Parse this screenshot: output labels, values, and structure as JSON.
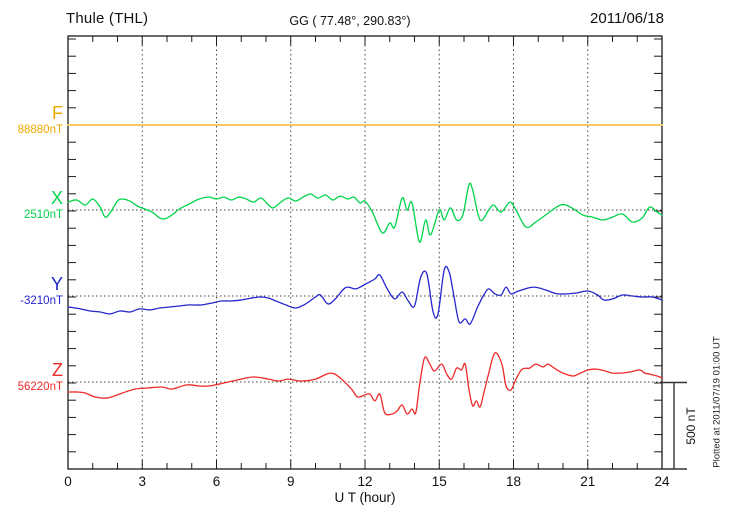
{
  "header": {
    "station": "Thule (THL)",
    "coords": "GG ( 77.48°, 290.83°)",
    "date": "2011/06/18"
  },
  "x_axis": {
    "label": "U T (hour)",
    "tick_labels": [
      "0",
      "3",
      "6",
      "9",
      "12",
      "15",
      "18",
      "21",
      "24"
    ],
    "range_hours": [
      0,
      24
    ],
    "minor_tick_step_hours": 1,
    "major_tick_step_hours": 3
  },
  "scale_bar": {
    "label": "500 nT",
    "span_nT": 500
  },
  "footer_note": "Plotted at 2011/07/19 01:00 UT",
  "style_colors": {
    "axis": "#1a1a1a",
    "grid_dots": "#444444"
  },
  "chart_data": {
    "type": "line",
    "title": "Thule (THL) magnetogram 2011/06/18",
    "xlabel": "U T (hour)",
    "x_range": [
      0,
      24
    ],
    "y_unit": "nT",
    "grid": "dotted vertical lines every 3 h; dotted horizontal baseline per channel",
    "legend_position": "left margin (channel letters with baseline values)",
    "scale_division_nT": 500,
    "series": [
      {
        "id": "F",
        "label": "F",
        "base_label": "88880nT",
        "base_value_nT": 88880,
        "color": "#f2a700",
        "line_color": "#ffc966",
        "line_width": 2,
        "points": [
          [
            0,
            88880
          ],
          [
            4,
            88880
          ],
          [
            8,
            88880
          ],
          [
            12,
            88880
          ],
          [
            16,
            88880
          ],
          [
            20,
            88880
          ],
          [
            24,
            88880
          ]
        ]
      },
      {
        "id": "X",
        "label": "X",
        "base_label": "2510nT",
        "base_value_nT": 2510,
        "color": "#00d44a",
        "line_color": "#00d44a",
        "line_width": 1.3,
        "points": [
          [
            0,
            2556
          ],
          [
            0.35,
            2568
          ],
          [
            0.7,
            2539
          ],
          [
            1.0,
            2574
          ],
          [
            1.3,
            2527
          ],
          [
            1.5,
            2469
          ],
          [
            1.7,
            2493
          ],
          [
            2.0,
            2562
          ],
          [
            2.2,
            2574
          ],
          [
            2.5,
            2562
          ],
          [
            2.8,
            2533
          ],
          [
            3.1,
            2516
          ],
          [
            3.4,
            2498
          ],
          [
            3.7,
            2464
          ],
          [
            3.9,
            2458
          ],
          [
            4.2,
            2481
          ],
          [
            4.5,
            2516
          ],
          [
            4.9,
            2545
          ],
          [
            5.3,
            2574
          ],
          [
            5.7,
            2585
          ],
          [
            6.0,
            2574
          ],
          [
            6.3,
            2585
          ],
          [
            6.6,
            2568
          ],
          [
            6.9,
            2585
          ],
          [
            7.2,
            2574
          ],
          [
            7.5,
            2556
          ],
          [
            7.8,
            2580
          ],
          [
            8.1,
            2539
          ],
          [
            8.3,
            2522
          ],
          [
            8.6,
            2556
          ],
          [
            8.9,
            2580
          ],
          [
            9.2,
            2562
          ],
          [
            9.5,
            2585
          ],
          [
            9.8,
            2603
          ],
          [
            10.1,
            2580
          ],
          [
            10.4,
            2597
          ],
          [
            10.7,
            2568
          ],
          [
            11.0,
            2591
          ],
          [
            11.3,
            2574
          ],
          [
            11.55,
            2585
          ],
          [
            11.8,
            2551
          ],
          [
            12.0,
            2562
          ],
          [
            12.3,
            2498
          ],
          [
            12.7,
            2377
          ],
          [
            13.0,
            2435
          ],
          [
            13.2,
            2411
          ],
          [
            13.5,
            2580
          ],
          [
            13.7,
            2510
          ],
          [
            13.9,
            2551
          ],
          [
            14.2,
            2324
          ],
          [
            14.45,
            2452
          ],
          [
            14.65,
            2365
          ],
          [
            15.0,
            2510
          ],
          [
            15.2,
            2452
          ],
          [
            15.45,
            2522
          ],
          [
            15.7,
            2452
          ],
          [
            15.95,
            2481
          ],
          [
            16.2,
            2655
          ],
          [
            16.35,
            2626
          ],
          [
            16.65,
            2452
          ],
          [
            17.0,
            2510
          ],
          [
            17.2,
            2539
          ],
          [
            17.5,
            2498
          ],
          [
            17.85,
            2556
          ],
          [
            18.1,
            2510
          ],
          [
            18.5,
            2411
          ],
          [
            18.9,
            2440
          ],
          [
            19.3,
            2481
          ],
          [
            19.9,
            2539
          ],
          [
            20.3,
            2527
          ],
          [
            20.8,
            2481
          ],
          [
            21.2,
            2469
          ],
          [
            21.6,
            2452
          ],
          [
            22.0,
            2469
          ],
          [
            22.4,
            2487
          ],
          [
            22.8,
            2440
          ],
          [
            23.2,
            2464
          ],
          [
            23.5,
            2527
          ],
          [
            23.8,
            2498
          ],
          [
            24.0,
            2481
          ]
        ]
      },
      {
        "id": "Y",
        "label": "Y",
        "base_label": "-3210nT",
        "base_value_nT": -3210,
        "color": "#2326cc",
        "line_color": "#2326cc",
        "line_width": 1.3,
        "points": [
          [
            0,
            -3274
          ],
          [
            0.5,
            -3285
          ],
          [
            0.9,
            -3297
          ],
          [
            1.3,
            -3303
          ],
          [
            1.7,
            -3314
          ],
          [
            2.1,
            -3297
          ],
          [
            2.5,
            -3303
          ],
          [
            2.9,
            -3285
          ],
          [
            3.3,
            -3291
          ],
          [
            3.7,
            -3280
          ],
          [
            4.1,
            -3274
          ],
          [
            4.5,
            -3268
          ],
          [
            4.9,
            -3262
          ],
          [
            5.4,
            -3262
          ],
          [
            5.8,
            -3251
          ],
          [
            6.2,
            -3239
          ],
          [
            6.6,
            -3239
          ],
          [
            7.0,
            -3233
          ],
          [
            7.4,
            -3222
          ],
          [
            7.8,
            -3216
          ],
          [
            8.1,
            -3222
          ],
          [
            8.4,
            -3239
          ],
          [
            8.8,
            -3262
          ],
          [
            9.2,
            -3280
          ],
          [
            9.6,
            -3256
          ],
          [
            10.0,
            -3216
          ],
          [
            10.2,
            -3204
          ],
          [
            10.5,
            -3256
          ],
          [
            10.8,
            -3227
          ],
          [
            11.1,
            -3175
          ],
          [
            11.3,
            -3158
          ],
          [
            11.6,
            -3169
          ],
          [
            11.8,
            -3158
          ],
          [
            12.1,
            -3135
          ],
          [
            12.4,
            -3111
          ],
          [
            12.6,
            -3088
          ],
          [
            12.9,
            -3169
          ],
          [
            13.2,
            -3227
          ],
          [
            13.5,
            -3187
          ],
          [
            13.75,
            -3239
          ],
          [
            14.0,
            -3268
          ],
          [
            14.25,
            -3100
          ],
          [
            14.5,
            -3082
          ],
          [
            14.75,
            -3303
          ],
          [
            14.95,
            -3314
          ],
          [
            15.2,
            -3059
          ],
          [
            15.4,
            -3071
          ],
          [
            15.6,
            -3216
          ],
          [
            15.8,
            -3361
          ],
          [
            16.05,
            -3343
          ],
          [
            16.25,
            -3372
          ],
          [
            16.55,
            -3274
          ],
          [
            16.8,
            -3204
          ],
          [
            17.0,
            -3169
          ],
          [
            17.25,
            -3198
          ],
          [
            17.5,
            -3204
          ],
          [
            17.7,
            -3158
          ],
          [
            17.9,
            -3198
          ],
          [
            18.2,
            -3181
          ],
          [
            18.8,
            -3158
          ],
          [
            19.3,
            -3175
          ],
          [
            19.8,
            -3198
          ],
          [
            20.5,
            -3193
          ],
          [
            21.0,
            -3181
          ],
          [
            21.4,
            -3204
          ],
          [
            21.65,
            -3233
          ],
          [
            22.0,
            -3227
          ],
          [
            22.4,
            -3204
          ],
          [
            22.8,
            -3210
          ],
          [
            23.2,
            -3216
          ],
          [
            23.6,
            -3216
          ],
          [
            24.0,
            -3233
          ]
        ]
      },
      {
        "id": "Z",
        "label": "Z",
        "base_label": "56220nT",
        "base_value_nT": 56220,
        "color": "#ee2a2a",
        "line_color": "#ee2a2a",
        "line_width": 1.3,
        "points": [
          [
            0,
            56162
          ],
          [
            0.4,
            56162
          ],
          [
            0.7,
            56156
          ],
          [
            1.1,
            56133
          ],
          [
            1.6,
            56127
          ],
          [
            2.2,
            56156
          ],
          [
            2.7,
            56179
          ],
          [
            3.2,
            56185
          ],
          [
            3.8,
            56191
          ],
          [
            4.2,
            56179
          ],
          [
            4.8,
            56203
          ],
          [
            5.3,
            56197
          ],
          [
            5.7,
            56197
          ],
          [
            6.3,
            56214
          ],
          [
            7.0,
            56237
          ],
          [
            7.5,
            56249
          ],
          [
            8.1,
            56237
          ],
          [
            8.5,
            56226
          ],
          [
            8.9,
            56237
          ],
          [
            9.4,
            56226
          ],
          [
            10.0,
            56237
          ],
          [
            10.6,
            56272
          ],
          [
            11.0,
            56243
          ],
          [
            11.45,
            56179
          ],
          [
            11.7,
            56133
          ],
          [
            12.0,
            56145
          ],
          [
            12.2,
            56150
          ],
          [
            12.4,
            56110
          ],
          [
            12.6,
            56150
          ],
          [
            12.8,
            56040
          ],
          [
            13.1,
            56034
          ],
          [
            13.3,
            56052
          ],
          [
            13.5,
            56087
          ],
          [
            13.7,
            56034
          ],
          [
            13.9,
            56063
          ],
          [
            14.05,
            56040
          ],
          [
            14.2,
            56197
          ],
          [
            14.4,
            56359
          ],
          [
            14.6,
            56330
          ],
          [
            14.8,
            56284
          ],
          [
            15.1,
            56324
          ],
          [
            15.3,
            56266
          ],
          [
            15.5,
            56237
          ],
          [
            15.7,
            56301
          ],
          [
            15.9,
            56290
          ],
          [
            16.05,
            56324
          ],
          [
            16.2,
            56179
          ],
          [
            16.35,
            56081
          ],
          [
            16.5,
            56110
          ],
          [
            16.65,
            56075
          ],
          [
            16.8,
            56156
          ],
          [
            17.0,
            56272
          ],
          [
            17.2,
            56377
          ],
          [
            17.35,
            56382
          ],
          [
            17.55,
            56313
          ],
          [
            17.7,
            56197
          ],
          [
            17.9,
            56174
          ],
          [
            18.1,
            56237
          ],
          [
            18.35,
            56295
          ],
          [
            18.65,
            56301
          ],
          [
            18.9,
            56324
          ],
          [
            19.2,
            56307
          ],
          [
            19.4,
            56324
          ],
          [
            19.7,
            56295
          ],
          [
            20.0,
            56272
          ],
          [
            20.4,
            56255
          ],
          [
            20.7,
            56272
          ],
          [
            21.0,
            56290
          ],
          [
            21.35,
            56295
          ],
          [
            21.7,
            56284
          ],
          [
            22.0,
            56272
          ],
          [
            22.35,
            56272
          ],
          [
            22.7,
            56278
          ],
          [
            23.1,
            56290
          ],
          [
            23.3,
            56272
          ],
          [
            23.5,
            56266
          ],
          [
            23.8,
            56255
          ],
          [
            24.0,
            56243
          ]
        ]
      }
    ]
  }
}
